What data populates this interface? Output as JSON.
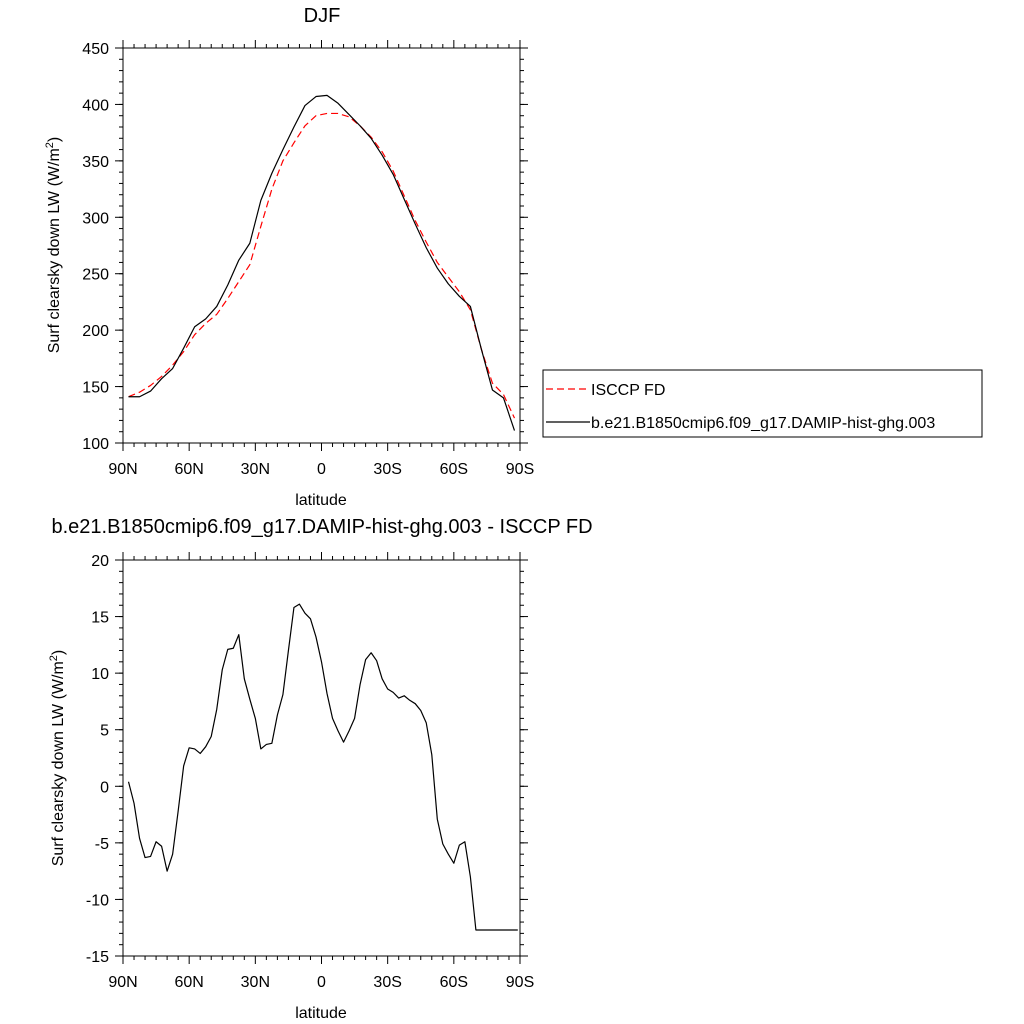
{
  "chart_data": [
    {
      "type": "line",
      "title": "DJF",
      "xlabel": "latitude",
      "ylabel": "Surf clearsky down LW (W/m",
      "ylabel_sup": "2",
      "ylabel_close": ")",
      "xlim": [
        90,
        -90
      ],
      "ylim": [
        100,
        450
      ],
      "x_ticks": [
        {
          "value": 90,
          "label": "90N"
        },
        {
          "value": 60,
          "label": "60N"
        },
        {
          "value": 30,
          "label": "30N"
        },
        {
          "value": 0,
          "label": "0"
        },
        {
          "value": -30,
          "label": "30S"
        },
        {
          "value": -60,
          "label": "60S"
        },
        {
          "value": -90,
          "label": "90S"
        }
      ],
      "y_ticks": [
        100,
        150,
        200,
        250,
        300,
        350,
        400,
        450
      ],
      "grid": false,
      "legend": "right",
      "series": [
        {
          "name": "ISCCP FD",
          "color": "#ff0000",
          "dash": "dashed",
          "x": [
            87.5,
            82.5,
            77.5,
            72.5,
            67.5,
            62.5,
            57.5,
            52.5,
            47.5,
            42.5,
            37.5,
            32.5,
            27.5,
            22.5,
            17.5,
            12.5,
            7.5,
            2.5,
            -2.5,
            -7.5,
            -12.5,
            -17.5,
            -22.5,
            -27.5,
            -32.5,
            -37.5,
            -42.5,
            -47.5,
            -52.5,
            -57.5,
            -62.5,
            -67.5,
            -72.5,
            -77.5,
            -82.5,
            -87.5
          ],
          "y": [
            141,
            145,
            151,
            159,
            169,
            181,
            196,
            206,
            214,
            228,
            243,
            258,
            292,
            325,
            350,
            366,
            381,
            390,
            392,
            392,
            389,
            381,
            371,
            358,
            341,
            319,
            297,
            278,
            260,
            247,
            234,
            218,
            183,
            153,
            143,
            122
          ]
        },
        {
          "name": "b.e21.B1850cmip6.f09_g17.DAMIP-hist-ghg.003",
          "color": "#000000",
          "dash": "solid",
          "x": [
            87.5,
            82.5,
            77.5,
            72.5,
            67.5,
            62.5,
            57.5,
            52.5,
            47.5,
            42.5,
            37.5,
            32.5,
            27.5,
            22.5,
            17.5,
            12.5,
            7.5,
            2.5,
            -2.5,
            -7.5,
            -12.5,
            -17.5,
            -22.5,
            -27.5,
            -32.5,
            -37.5,
            -42.5,
            -47.5,
            -52.5,
            -57.5,
            -62.5,
            -67.5,
            -72.5,
            -77.5,
            -82.5,
            -87.5
          ],
          "y": [
            141,
            141,
            146,
            157,
            166,
            184,
            203,
            210,
            221,
            240,
            262,
            277,
            315,
            339,
            360,
            380,
            399,
            407,
            408,
            401,
            391,
            381,
            370,
            355,
            338,
            316,
            294,
            273,
            255,
            241,
            230,
            221,
            183,
            147,
            140,
            111
          ]
        }
      ]
    },
    {
      "type": "line",
      "title": "b.e21.B1850cmip6.f09_g17.DAMIP-hist-ghg.003 - ISCCP FD",
      "xlabel": "latitude",
      "ylabel": "Surf clearsky down LW (W/m",
      "ylabel_sup": "2",
      "ylabel_close": ")",
      "xlim": [
        90,
        -90
      ],
      "ylim": [
        -15,
        20
      ],
      "x_ticks": [
        {
          "value": 90,
          "label": "90N"
        },
        {
          "value": 60,
          "label": "60N"
        },
        {
          "value": 30,
          "label": "30N"
        },
        {
          "value": 0,
          "label": "0"
        },
        {
          "value": -30,
          "label": "30S"
        },
        {
          "value": -60,
          "label": "60S"
        },
        {
          "value": -90,
          "label": "90S"
        }
      ],
      "y_ticks": [
        -15,
        -10,
        -5,
        0,
        5,
        10,
        15,
        20
      ],
      "grid": false,
      "series": [
        {
          "color": "#000000",
          "dash": "solid",
          "x": [
            87.5,
            85.0,
            82.5,
            80.0,
            77.5,
            75.0,
            72.5,
            70.0,
            67.5,
            65.0,
            62.5,
            60.0,
            57.5,
            55.0,
            52.5,
            50.0,
            47.5,
            45.0,
            42.5,
            40.0,
            37.5,
            35.0,
            32.5,
            30.0,
            27.5,
            25.0,
            22.5,
            20.0,
            17.5,
            15.0,
            12.5,
            10.0,
            7.5,
            5.0,
            2.5,
            0.0,
            -2.5,
            -5.0,
            -7.5,
            -10.0,
            -12.5,
            -15.0,
            -17.5,
            -20.0,
            -22.5,
            -25.0,
            -27.5,
            -30.0,
            -32.5,
            -35.0,
            -37.5,
            -40.0,
            -42.5,
            -45.0,
            -47.5,
            -50.0,
            -52.5,
            -55.0,
            -57.5,
            -60.0,
            -62.5,
            -65.0,
            -67.5,
            -70.0,
            -72.5,
            -75.0,
            -77.5,
            -80.0,
            -82.5,
            -85.0,
            -87.5,
            -89.0
          ],
          "y": [
            0.4,
            -1.5,
            -4.6,
            -6.3,
            -6.2,
            -4.9,
            -5.3,
            -7.5,
            -6.0,
            -2.2,
            1.8,
            3.4,
            3.3,
            2.9,
            3.5,
            4.4,
            6.8,
            10.3,
            12.1,
            12.2,
            13.4,
            9.5,
            7.7,
            6.0,
            3.3,
            3.7,
            3.8,
            6.3,
            8.1,
            12.0,
            15.8,
            16.1,
            15.3,
            14.8,
            13.2,
            11.0,
            8.2,
            6.0,
            4.9,
            3.9,
            4.9,
            6.0,
            9.0,
            11.2,
            11.8,
            11.1,
            9.5,
            8.6,
            8.3,
            7.8,
            8.0,
            7.6,
            7.3,
            6.7,
            5.6,
            2.8,
            -2.9,
            -5.1,
            -6.0,
            -6.8,
            -5.2,
            -4.9,
            -8.0,
            -12.7,
            -12.7,
            -12.7,
            -12.7,
            -12.7,
            -12.7,
            -12.7,
            -12.7,
            -12.7
          ]
        }
      ]
    }
  ]
}
